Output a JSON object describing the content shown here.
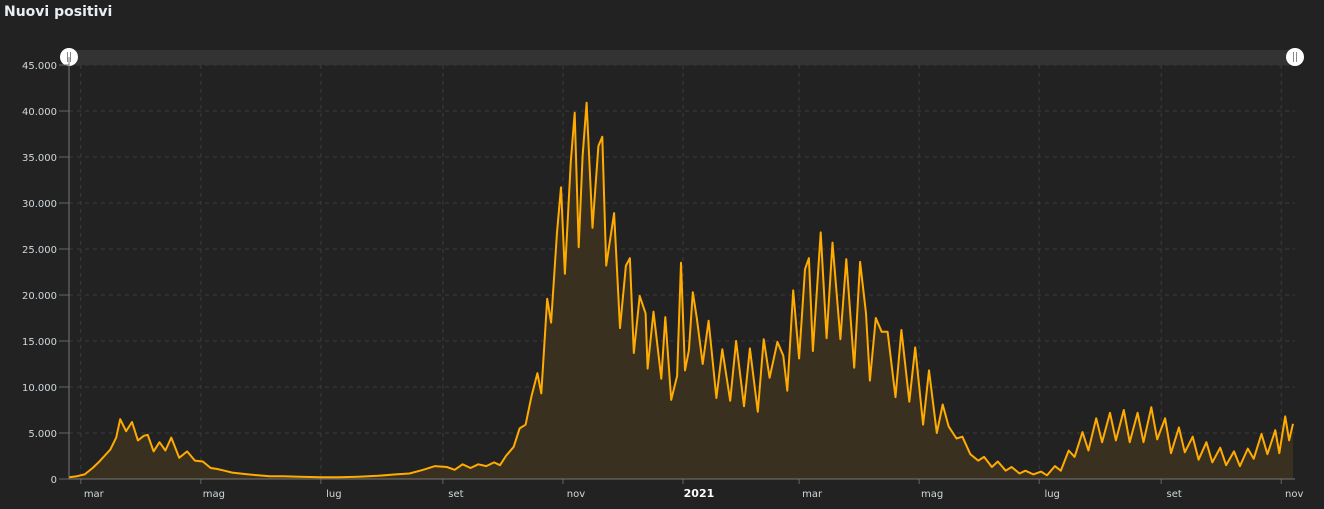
{
  "title": "Nuovi positivi",
  "colors": {
    "line": "#ffab00",
    "area": "#3a3020",
    "background": "#222222",
    "grid": "#3c3c3c",
    "navigator": "#333333"
  },
  "chart_data": {
    "type": "area",
    "title": "Nuovi positivi",
    "xlabel": "",
    "ylabel": "",
    "xlim": [
      "2020-02-24",
      "2021-11-08"
    ],
    "ylim": [
      0,
      45000
    ],
    "grid": true,
    "y_ticks": [
      0,
      5000,
      10000,
      15000,
      20000,
      25000,
      30000,
      35000,
      40000,
      45000
    ],
    "y_tick_labels": [
      "0",
      "5.000",
      "10.000",
      "15.000",
      "20.000",
      "25.000",
      "30.000",
      "35.000",
      "40.000",
      "45.000"
    ],
    "x_ticks": [
      {
        "date": "2020-03-01",
        "label": "mar"
      },
      {
        "date": "2020-05-01",
        "label": "mag"
      },
      {
        "date": "2020-07-01",
        "label": "lug"
      },
      {
        "date": "2020-09-01",
        "label": "set"
      },
      {
        "date": "2020-11-01",
        "label": "nov"
      },
      {
        "date": "2021-01-01",
        "label": "2021",
        "bold": true
      },
      {
        "date": "2021-03-01",
        "label": "mar"
      },
      {
        "date": "2021-05-01",
        "label": "mag"
      },
      {
        "date": "2021-07-01",
        "label": "lug"
      },
      {
        "date": "2021-09-01",
        "label": "set"
      },
      {
        "date": "2021-11-01",
        "label": "nov"
      }
    ],
    "points": [
      [
        "2020-02-24",
        200
      ],
      [
        "2020-02-28",
        300
      ],
      [
        "2020-03-03",
        500
      ],
      [
        "2020-03-07",
        1200
      ],
      [
        "2020-03-10",
        1800
      ],
      [
        "2020-03-13",
        2500
      ],
      [
        "2020-03-16",
        3200
      ],
      [
        "2020-03-19",
        4500
      ],
      [
        "2020-03-21",
        6500
      ],
      [
        "2020-03-24",
        5200
      ],
      [
        "2020-03-27",
        6200
      ],
      [
        "2020-03-30",
        4200
      ],
      [
        "2020-04-02",
        4700
      ],
      [
        "2020-04-04",
        4800
      ],
      [
        "2020-04-07",
        3000
      ],
      [
        "2020-04-10",
        4000
      ],
      [
        "2020-04-13",
        3100
      ],
      [
        "2020-04-16",
        4500
      ],
      [
        "2020-04-20",
        2300
      ],
      [
        "2020-04-24",
        3000
      ],
      [
        "2020-04-28",
        2000
      ],
      [
        "2020-05-02",
        1900
      ],
      [
        "2020-05-06",
        1200
      ],
      [
        "2020-05-09",
        1100
      ],
      [
        "2020-05-13",
        900
      ],
      [
        "2020-05-17",
        700
      ],
      [
        "2020-05-21",
        600
      ],
      [
        "2020-05-25",
        500
      ],
      [
        "2020-05-30",
        400
      ],
      [
        "2020-06-05",
        300
      ],
      [
        "2020-06-12",
        300
      ],
      [
        "2020-06-20",
        250
      ],
      [
        "2020-07-01",
        200
      ],
      [
        "2020-07-10",
        200
      ],
      [
        "2020-07-20",
        250
      ],
      [
        "2020-07-30",
        350
      ],
      [
        "2020-08-08",
        500
      ],
      [
        "2020-08-15",
        600
      ],
      [
        "2020-08-22",
        1000
      ],
      [
        "2020-08-28",
        1400
      ],
      [
        "2020-09-03",
        1300
      ],
      [
        "2020-09-07",
        1000
      ],
      [
        "2020-09-11",
        1600
      ],
      [
        "2020-09-15",
        1200
      ],
      [
        "2020-09-19",
        1600
      ],
      [
        "2020-09-23",
        1400
      ],
      [
        "2020-09-27",
        1800
      ],
      [
        "2020-09-30",
        1500
      ],
      [
        "2020-10-03",
        2500
      ],
      [
        "2020-10-07",
        3500
      ],
      [
        "2020-10-10",
        5500
      ],
      [
        "2020-10-13",
        5900
      ],
      [
        "2020-10-16",
        9000
      ],
      [
        "2020-10-19",
        11500
      ],
      [
        "2020-10-21",
        9300
      ],
      [
        "2020-10-24",
        19600
      ],
      [
        "2020-10-26",
        17000
      ],
      [
        "2020-10-29",
        26800
      ],
      [
        "2020-10-31",
        31700
      ],
      [
        "2020-11-02",
        22300
      ],
      [
        "2020-11-05",
        34500
      ],
      [
        "2020-11-07",
        39800
      ],
      [
        "2020-11-09",
        25200
      ],
      [
        "2020-11-11",
        35100
      ],
      [
        "2020-11-13",
        40900
      ],
      [
        "2020-11-16",
        27300
      ],
      [
        "2020-11-19",
        36200
      ],
      [
        "2020-11-21",
        37200
      ],
      [
        "2020-11-23",
        23200
      ],
      [
        "2020-11-27",
        28900
      ],
      [
        "2020-11-30",
        16400
      ],
      [
        "2020-12-03",
        23200
      ],
      [
        "2020-12-05",
        24000
      ],
      [
        "2020-12-07",
        13700
      ],
      [
        "2020-12-10",
        19900
      ],
      [
        "2020-12-13",
        18000
      ],
      [
        "2020-12-14",
        12000
      ],
      [
        "2020-12-17",
        18200
      ],
      [
        "2020-12-21",
        10900
      ],
      [
        "2020-12-23",
        17600
      ],
      [
        "2020-12-26",
        8600
      ],
      [
        "2020-12-29",
        11200
      ],
      [
        "2020-12-31",
        23500
      ],
      [
        "2021-01-02",
        11800
      ],
      [
        "2021-01-04",
        14000
      ],
      [
        "2021-01-06",
        20300
      ],
      [
        "2021-01-08",
        17500
      ],
      [
        "2021-01-11",
        12500
      ],
      [
        "2021-01-14",
        17200
      ],
      [
        "2021-01-18",
        8800
      ],
      [
        "2021-01-21",
        14100
      ],
      [
        "2021-01-25",
        8500
      ],
      [
        "2021-01-28",
        15000
      ],
      [
        "2021-02-01",
        7900
      ],
      [
        "2021-02-04",
        14200
      ],
      [
        "2021-02-08",
        7300
      ],
      [
        "2021-02-11",
        15200
      ],
      [
        "2021-02-14",
        11000
      ],
      [
        "2021-02-18",
        14900
      ],
      [
        "2021-02-21",
        13400
      ],
      [
        "2021-02-23",
        9600
      ],
      [
        "2021-02-26",
        20500
      ],
      [
        "2021-03-01",
        13100
      ],
      [
        "2021-03-04",
        22800
      ],
      [
        "2021-03-06",
        24000
      ],
      [
        "2021-03-08",
        13900
      ],
      [
        "2021-03-12",
        26800
      ],
      [
        "2021-03-15",
        15300
      ],
      [
        "2021-03-18",
        25700
      ],
      [
        "2021-03-22",
        15200
      ],
      [
        "2021-03-25",
        23900
      ],
      [
        "2021-03-29",
        12100
      ],
      [
        "2021-04-01",
        23600
      ],
      [
        "2021-04-04",
        18000
      ],
      [
        "2021-04-06",
        10700
      ],
      [
        "2021-04-09",
        17500
      ],
      [
        "2021-04-12",
        16000
      ],
      [
        "2021-04-15",
        16000
      ],
      [
        "2021-04-19",
        8900
      ],
      [
        "2021-04-22",
        16200
      ],
      [
        "2021-04-26",
        8400
      ],
      [
        "2021-04-29",
        14300
      ],
      [
        "2021-05-03",
        5900
      ],
      [
        "2021-05-06",
        11800
      ],
      [
        "2021-05-10",
        5000
      ],
      [
        "2021-05-13",
        8100
      ],
      [
        "2021-05-16",
        5700
      ],
      [
        "2021-05-20",
        4400
      ],
      [
        "2021-05-23",
        4600
      ],
      [
        "2021-05-27",
        2700
      ],
      [
        "2021-05-31",
        2000
      ],
      [
        "2021-06-03",
        2400
      ],
      [
        "2021-06-07",
        1300
      ],
      [
        "2021-06-10",
        1900
      ],
      [
        "2021-06-14",
        900
      ],
      [
        "2021-06-17",
        1300
      ],
      [
        "2021-06-21",
        600
      ],
      [
        "2021-06-24",
        900
      ],
      [
        "2021-06-28",
        500
      ],
      [
        "2021-07-02",
        800
      ],
      [
        "2021-07-05",
        400
      ],
      [
        "2021-07-09",
        1400
      ],
      [
        "2021-07-12",
        900
      ],
      [
        "2021-07-16",
        3100
      ],
      [
        "2021-07-19",
        2400
      ],
      [
        "2021-07-23",
        5100
      ],
      [
        "2021-07-26",
        3100
      ],
      [
        "2021-07-30",
        6600
      ],
      [
        "2021-08-02",
        4000
      ],
      [
        "2021-08-06",
        7200
      ],
      [
        "2021-08-09",
        4200
      ],
      [
        "2021-08-13",
        7500
      ],
      [
        "2021-08-16",
        4000
      ],
      [
        "2021-08-20",
        7200
      ],
      [
        "2021-08-23",
        4000
      ],
      [
        "2021-08-27",
        7800
      ],
      [
        "2021-08-30",
        4300
      ],
      [
        "2021-09-03",
        6600
      ],
      [
        "2021-09-06",
        2800
      ],
      [
        "2021-09-10",
        5600
      ],
      [
        "2021-09-13",
        2900
      ],
      [
        "2021-09-17",
        4600
      ],
      [
        "2021-09-20",
        2100
      ],
      [
        "2021-09-24",
        4000
      ],
      [
        "2021-09-27",
        1800
      ],
      [
        "2021-10-01",
        3400
      ],
      [
        "2021-10-04",
        1500
      ],
      [
        "2021-10-08",
        3000
      ],
      [
        "2021-10-11",
        1400
      ],
      [
        "2021-10-15",
        3300
      ],
      [
        "2021-10-18",
        2200
      ],
      [
        "2021-10-22",
        4900
      ],
      [
        "2021-10-25",
        2700
      ],
      [
        "2021-10-29",
        5300
      ],
      [
        "2021-10-31",
        2800
      ],
      [
        "2021-11-03",
        6800
      ],
      [
        "2021-11-05",
        4200
      ],
      [
        "2021-11-07",
        6000
      ]
    ]
  }
}
